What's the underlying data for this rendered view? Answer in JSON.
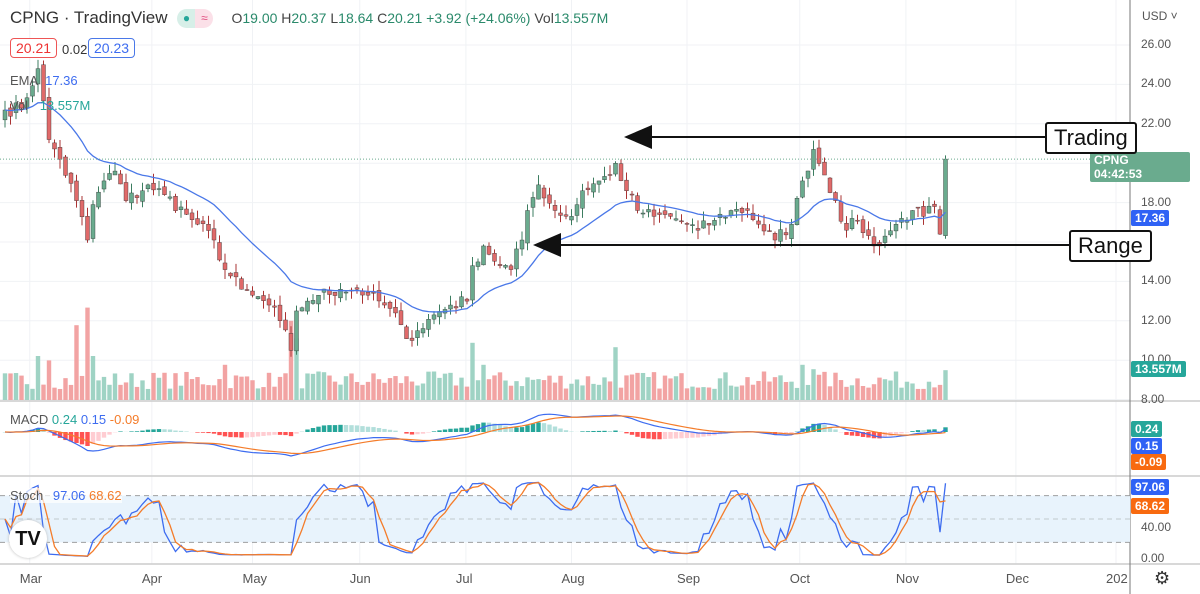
{
  "header": {
    "title": "CPNG · TradingView",
    "open_label": "O",
    "open": "19.00",
    "high_label": "H",
    "high": "20.37",
    "low_label": "L",
    "low": "18.64",
    "close_label": "C",
    "close": "20.21",
    "change": "+3.92 (+24.06%)",
    "vol_label": "Vol",
    "vol": "13.557M",
    "market_icon": "market-open-dot-icon",
    "delay_icon": "approx-icon"
  },
  "quote": {
    "bid": "20.21",
    "spread": "0.02",
    "ask": "20.23"
  },
  "legend": {
    "ema_label": "EMA",
    "ema_value": "17.36",
    "vol_label": "Vol",
    "vol_value": "13.557M",
    "macd_label": "MACD",
    "macd": "0.24",
    "macd_line": "0.15",
    "macd_signal": "-0.09",
    "stoch_label": "Stoch",
    "stoch_k": "97.06",
    "stoch_d": "68.62"
  },
  "price_axis": {
    "currency": "USD",
    "ticks": [
      "26.00",
      "24.00",
      "22.00",
      "18.00",
      "14.00",
      "12.00",
      "10.00",
      "8.00"
    ],
    "last_symbol": "CPNG",
    "countdown": "04:42:53",
    "ema_tag": "17.36",
    "vol_tag": "13.557M",
    "macd_tags": [
      "0.24",
      "0.15",
      "-0.09"
    ],
    "stoch_tags": [
      "97.06",
      "68.62"
    ],
    "stoch_ticks": [
      "40.00",
      "0.00"
    ]
  },
  "annotations": {
    "top": "Trading",
    "bottom": "Range"
  },
  "colors": {
    "up": "#6aab8e",
    "down": "#e06a6a",
    "ema": "#4a78e8",
    "stoch_k": "#3d6cf0",
    "stoch_d": "#f47c2a",
    "vol_up": "#9fd3c4",
    "vol_down": "#f2a3a3"
  },
  "chart_data": {
    "type": "candlestick",
    "symbol": "CPNG",
    "candle_count": 172,
    "close_keypoints": [
      [
        0,
        22.7
      ],
      [
        3,
        22.8
      ],
      [
        6,
        24.8
      ],
      [
        8,
        21.2
      ],
      [
        10,
        20.2
      ],
      [
        13,
        18.1
      ],
      [
        15,
        16.1
      ],
      [
        16,
        17.9
      ],
      [
        18,
        19.1
      ],
      [
        20,
        19.6
      ],
      [
        22,
        18.1
      ],
      [
        25,
        18.6
      ],
      [
        26,
        18.9
      ],
      [
        29,
        18.4
      ],
      [
        33,
        17.4
      ],
      [
        35,
        16.9
      ],
      [
        38,
        16.1
      ],
      [
        40,
        14.6
      ],
      [
        43,
        13.6
      ],
      [
        45,
        13.3
      ],
      [
        48,
        12.8
      ],
      [
        50,
        12.0
      ],
      [
        52,
        10.5
      ],
      [
        53,
        12.5
      ],
      [
        55,
        13.0
      ],
      [
        57,
        13.3
      ],
      [
        61,
        13.6
      ],
      [
        64,
        13.6
      ],
      [
        66,
        13.3
      ],
      [
        69,
        12.8
      ],
      [
        72,
        11.8
      ],
      [
        74,
        11.0
      ],
      [
        75,
        11.5
      ],
      [
        78,
        12.3
      ],
      [
        81,
        12.8
      ],
      [
        84,
        13.0
      ],
      [
        85,
        14.8
      ],
      [
        87,
        15.8
      ],
      [
        90,
        14.8
      ],
      [
        92,
        14.6
      ],
      [
        94,
        16.1
      ],
      [
        95,
        17.6
      ],
      [
        97,
        18.9
      ],
      [
        100,
        17.6
      ],
      [
        103,
        17.3
      ],
      [
        105,
        18.6
      ],
      [
        108,
        19.1
      ],
      [
        110,
        19.4
      ],
      [
        111,
        20.0
      ],
      [
        113,
        18.6
      ],
      [
        115,
        17.6
      ],
      [
        118,
        17.3
      ],
      [
        121,
        17.3
      ],
      [
        124,
        16.9
      ],
      [
        126,
        16.6
      ],
      [
        129,
        17.1
      ],
      [
        132,
        17.6
      ],
      [
        135,
        17.6
      ],
      [
        137,
        16.9
      ],
      [
        140,
        16.1
      ],
      [
        143,
        16.9
      ],
      [
        145,
        19.1
      ],
      [
        147,
        20.7
      ],
      [
        149,
        19.4
      ],
      [
        151,
        18.1
      ],
      [
        153,
        16.6
      ],
      [
        155,
        17.1
      ],
      [
        158,
        15.8
      ],
      [
        160,
        16.3
      ],
      [
        162,
        16.9
      ],
      [
        165,
        17.6
      ],
      [
        167,
        17.3
      ],
      [
        169,
        17.8
      ],
      [
        170,
        16.4
      ],
      [
        171,
        20.21
      ]
    ],
    "volume_base_millions": 10,
    "volume_spikes_millions": [
      [
        6,
        20
      ],
      [
        8,
        18
      ],
      [
        13,
        34
      ],
      [
        15,
        42
      ],
      [
        16,
        20
      ],
      [
        40,
        16
      ],
      [
        52,
        36
      ],
      [
        53,
        28
      ],
      [
        85,
        26
      ],
      [
        87,
        16
      ],
      [
        111,
        24
      ],
      [
        145,
        16
      ],
      [
        147,
        14
      ],
      [
        171,
        13.557
      ]
    ],
    "ema_period": 20,
    "time_ticks": [
      {
        "label": "Mar",
        "index": 4.5
      },
      {
        "label": "Apr",
        "index": 26.7
      },
      {
        "label": "May",
        "index": 45
      },
      {
        "label": "Jun",
        "index": 64.5
      },
      {
        "label": "Jul",
        "index": 83.8
      },
      {
        "label": "Aug",
        "index": 103
      },
      {
        "label": "Sep",
        "index": 124
      },
      {
        "label": "Oct",
        "index": 144.5
      },
      {
        "label": "Nov",
        "index": 163.8
      },
      {
        "label": "Dec",
        "index": 183.8
      },
      {
        "label": "202",
        "index": 202
      }
    ],
    "price_range": [
      8,
      26
    ],
    "stoch_bands": [
      20,
      50,
      80
    ]
  }
}
